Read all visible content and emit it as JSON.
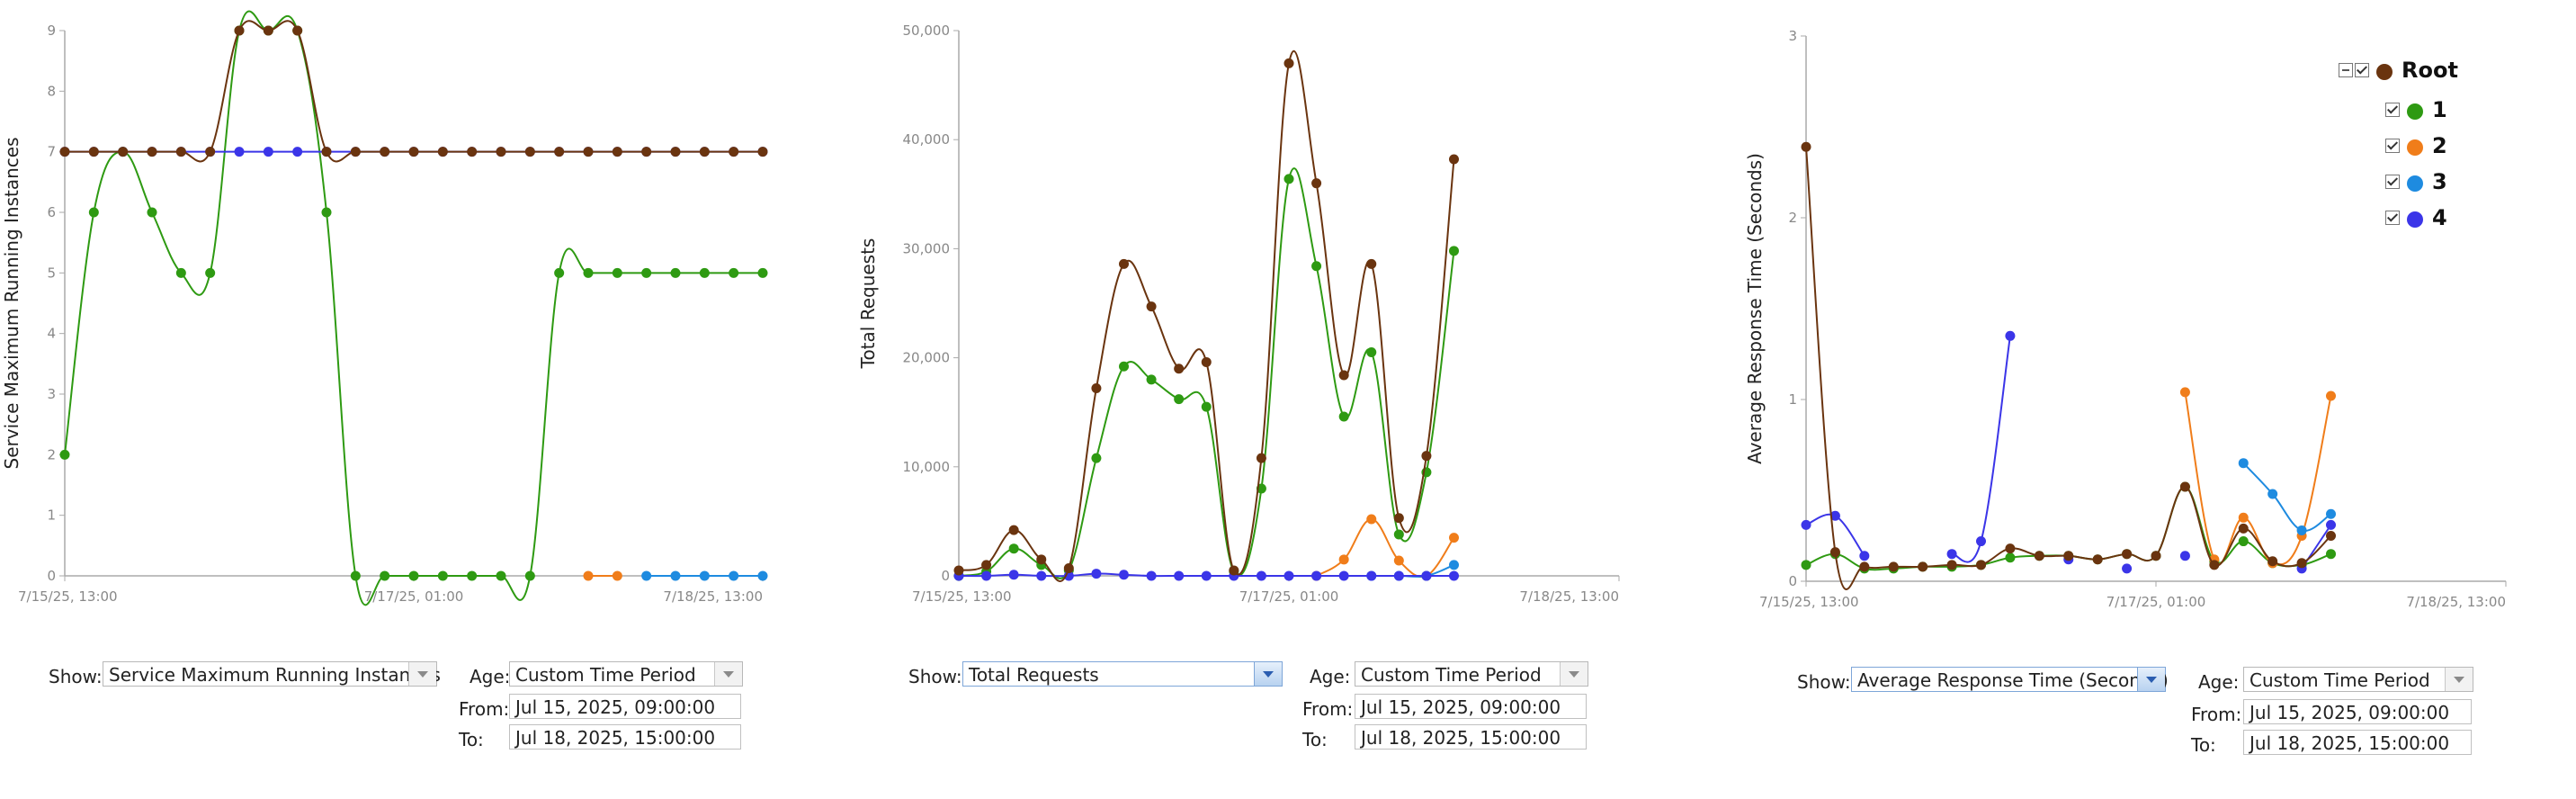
{
  "colors": {
    "root": "#6a340f",
    "s1": "#2e9a12",
    "s2": "#f07d1a",
    "s3": "#1e8be0",
    "s4": "#3b35e8",
    "axis": "#aaaaaa",
    "tick": "#888888"
  },
  "legend": {
    "items": [
      {
        "label": "Root",
        "color": "#6a340f"
      },
      {
        "label": "1",
        "color": "#2e9a12"
      },
      {
        "label": "2",
        "color": "#f07d1a"
      },
      {
        "label": "3",
        "color": "#1e8be0"
      },
      {
        "label": "4",
        "color": "#3b35e8"
      }
    ]
  },
  "chart_data": [
    {
      "type": "line",
      "ylabel": "Service Maximum Running Instances",
      "xlabel": "",
      "ylim": [
        0,
        9
      ],
      "yticks": [
        "0",
        "1",
        "2",
        "3",
        "4",
        "5",
        "6",
        "7",
        "8",
        "9"
      ],
      "xtick_labels": [
        "7/15/25, 13:00",
        "7/17/25, 01:00",
        "7/18/25, 13:00"
      ],
      "x": [
        "7/15 13:00",
        "7/15 16:00",
        "7/15 19:00",
        "7/15 22:00",
        "7/16 01:00",
        "7/16 04:00",
        "7/16 07:00",
        "7/16 10:00",
        "7/16 13:00",
        "7/16 16:00",
        "7/16 19:00",
        "7/16 22:00",
        "7/17 01:00",
        "7/17 04:00",
        "7/17 07:00",
        "7/17 10:00",
        "7/17 13:00",
        "7/17 16:00",
        "7/17 19:00",
        "7/17 22:00",
        "7/18 01:00",
        "7/18 04:00",
        "7/18 07:00",
        "7/18 10:00",
        "7/18 13:00"
      ],
      "series": [
        {
          "name": "1",
          "values": [
            2,
            6,
            7,
            6,
            5,
            5,
            9,
            9,
            9,
            6,
            0,
            0,
            0,
            0,
            0,
            0,
            0,
            5,
            5,
            5,
            5,
            5,
            5,
            5,
            5
          ]
        },
        {
          "name": "2",
          "values": [
            null,
            null,
            null,
            null,
            null,
            null,
            null,
            null,
            null,
            null,
            null,
            null,
            null,
            null,
            null,
            null,
            null,
            null,
            0,
            0,
            null,
            null,
            null,
            null,
            null
          ]
        },
        {
          "name": "3",
          "values": [
            null,
            null,
            null,
            null,
            null,
            null,
            null,
            null,
            null,
            null,
            null,
            null,
            null,
            null,
            null,
            null,
            null,
            null,
            null,
            null,
            0,
            0,
            0,
            0,
            0
          ]
        },
        {
          "name": "4",
          "values": [
            7,
            7,
            7,
            7,
            7,
            7,
            7,
            7,
            7,
            7,
            7,
            7,
            7,
            7,
            7,
            7,
            7,
            7,
            7,
            7,
            7,
            7,
            7,
            7,
            7
          ]
        },
        {
          "name": "Root",
          "values": [
            7,
            7,
            7,
            7,
            7,
            7,
            9,
            9,
            9,
            7,
            7,
            7,
            7,
            7,
            7,
            7,
            7,
            7,
            7,
            7,
            7,
            7,
            7,
            7,
            7
          ]
        }
      ],
      "controls": {
        "show_label": "Show:",
        "show_value": "Service Maximum Running Instances",
        "age_label": "Age:",
        "age_value": "Custom Time Period",
        "from_label": "From:",
        "from_value": "Jul 15, 2025, 09:00:00",
        "to_label": "To:",
        "to_value": "Jul 18, 2025, 15:00:00"
      }
    },
    {
      "type": "line",
      "ylabel": "Total Requests",
      "xlabel": "",
      "ylim": [
        0,
        50000
      ],
      "yticks": [
        "0",
        "10,000",
        "20,000",
        "30,000",
        "40,000",
        "50,000"
      ],
      "xtick_labels": [
        "7/15/25, 13:00",
        "7/17/25, 01:00",
        "7/18/25, 13:00"
      ],
      "x": [
        "7/15 13:00",
        "7/15 16:00",
        "7/15 19:00",
        "7/15 22:00",
        "7/16 01:00",
        "7/16 04:00",
        "7/16 07:00",
        "7/16 10:00",
        "7/16 13:00",
        "7/16 16:00",
        "7/16 19:00",
        "7/16 22:00",
        "7/17 01:00",
        "7/17 04:00",
        "7/17 07:00",
        "7/17 10:00",
        "7/17 13:00",
        "7/17 16:00",
        "7/17 19:00",
        "7/17 22:00",
        "7/18 01:00",
        "7/18 04:00",
        "7/18 07:00",
        "7/18 10:00",
        "7/18 13:00"
      ],
      "series": [
        {
          "name": "1",
          "values": [
            0,
            400,
            2500,
            1000,
            500,
            10800,
            19200,
            18000,
            16200,
            15500,
            400,
            8000,
            36400,
            28400,
            14600,
            20500,
            3800,
            9500,
            29800,
            null,
            null,
            null,
            null,
            null,
            null
          ]
        },
        {
          "name": "2",
          "values": [
            null,
            null,
            null,
            null,
            null,
            null,
            null,
            null,
            null,
            null,
            null,
            null,
            null,
            0,
            1500,
            5200,
            1400,
            0,
            3500,
            null,
            null,
            null,
            null,
            null,
            null
          ]
        },
        {
          "name": "3",
          "values": [
            null,
            null,
            null,
            null,
            null,
            null,
            null,
            null,
            null,
            null,
            null,
            null,
            null,
            null,
            null,
            0,
            0,
            0,
            1000,
            null,
            null,
            null,
            null,
            null,
            null
          ]
        },
        {
          "name": "4",
          "values": [
            0,
            0,
            100,
            0,
            0,
            200,
            100,
            0,
            0,
            0,
            0,
            0,
            0,
            0,
            0,
            0,
            0,
            0,
            0,
            null,
            null,
            null,
            null,
            null,
            null
          ]
        },
        {
          "name": "Root",
          "values": [
            500,
            1000,
            4200,
            1500,
            700,
            17200,
            28600,
            24700,
            19000,
            19600,
            500,
            10800,
            47000,
            36000,
            18400,
            28600,
            5300,
            11000,
            38200,
            null,
            null,
            null,
            null,
            null,
            null
          ]
        }
      ],
      "controls": {
        "show_label": "Show:",
        "show_value": "Total Requests",
        "age_label": "Age:",
        "age_value": "Custom Time Period",
        "from_label": "From:",
        "from_value": "Jul 15, 2025, 09:00:00",
        "to_label": "To:",
        "to_value": "Jul 18, 2025, 15:00:00"
      }
    },
    {
      "type": "line",
      "ylabel": "Average Response Time (Seconds)",
      "xlabel": "",
      "ylim": [
        0,
        3
      ],
      "yticks": [
        "0",
        "1",
        "2",
        "3"
      ],
      "xtick_labels": [
        "7/15/25, 13:00",
        "7/17/25, 01:00",
        "7/18/25, 13:00"
      ],
      "x": [
        "7/15 13:00",
        "7/15 16:00",
        "7/15 19:00",
        "7/15 22:00",
        "7/16 01:00",
        "7/16 04:00",
        "7/16 07:00",
        "7/16 10:00",
        "7/16 13:00",
        "7/16 16:00",
        "7/16 19:00",
        "7/16 22:00",
        "7/17 01:00",
        "7/17 04:00",
        "7/17 07:00",
        "7/17 10:00",
        "7/17 13:00",
        "7/17 16:00",
        "7/17 19:00",
        "7/17 22:00",
        "7/18 01:00",
        "7/18 04:00",
        "7/18 07:00",
        "7/18 10:00",
        "7/18 13:00"
      ],
      "series": [
        {
          "name": "1",
          "values": [
            0.09,
            0.15,
            0.07,
            0.07,
            0.08,
            0.08,
            0.09,
            0.13,
            0.14,
            0.14,
            0.12,
            0.15,
            0.14,
            0.52,
            0.11,
            0.22,
            0.1,
            0.09,
            0.15,
            null,
            null,
            null,
            null,
            null,
            null
          ]
        },
        {
          "name": "2",
          "values": [
            null,
            null,
            null,
            null,
            null,
            null,
            null,
            null,
            null,
            null,
            null,
            null,
            null,
            1.04,
            0.12,
            0.35,
            0.1,
            0.25,
            1.02,
            null,
            null,
            null,
            null,
            null,
            null
          ]
        },
        {
          "name": "3",
          "values": [
            null,
            null,
            null,
            null,
            null,
            null,
            null,
            null,
            null,
            null,
            null,
            null,
            null,
            null,
            null,
            0.65,
            0.48,
            0.28,
            0.37,
            null,
            null,
            null,
            null,
            null,
            null
          ]
        },
        {
          "name": "4",
          "values": [
            0.31,
            0.36,
            0.14,
            null,
            null,
            0.15,
            0.22,
            1.35,
            null,
            0.12,
            null,
            0.07,
            null,
            0.14,
            null,
            null,
            null,
            0.07,
            0.31,
            null,
            null,
            null,
            null,
            null,
            null
          ]
        },
        {
          "name": "Root",
          "values": [
            2.39,
            0.16,
            0.08,
            0.08,
            0.08,
            0.09,
            0.09,
            0.18,
            0.14,
            0.14,
            0.12,
            0.15,
            0.14,
            0.52,
            0.09,
            0.29,
            0.11,
            0.1,
            0.25,
            null,
            null,
            null,
            null,
            null,
            null
          ]
        }
      ],
      "controls": {
        "show_label": "Show:",
        "show_value": "Average Response Time (Seconds)",
        "age_label": "Age:",
        "age_value": "Custom Time Period",
        "from_label": "From:",
        "from_value": "Jul 15, 2025, 09:00:00",
        "to_label": "To:",
        "to_value": "Jul 18, 2025, 15:00:00"
      }
    }
  ]
}
